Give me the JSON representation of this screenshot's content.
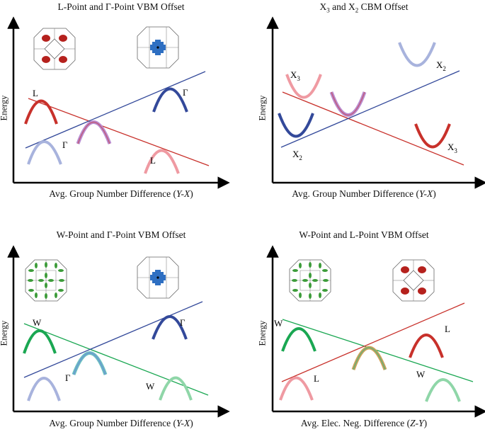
{
  "colors": {
    "red": "#c8312b",
    "lightred": "#ef9aa2",
    "blue": "#33499a",
    "lightblue": "#a8b3dd",
    "purple": "#b98bd0",
    "green": "#1aa752",
    "lightgreen": "#8fd6a8",
    "bz_red": "#b5211d",
    "bz_blue": "#2e6fc2",
    "bz_green": "#3d9c3a"
  },
  "panels": [
    {
      "title_parts": [
        "L-Point and ",
        "Γ",
        "-Point VBM Offset"
      ],
      "xlabel": "Avg. Group Number Difference (",
      "xlabel_var": "Y-X",
      "xlabel_end": ")",
      "ylabel": "Energy",
      "labels": {
        "a": "L",
        "b": "Γ",
        "c": "Γ",
        "d": "L"
      },
      "bz_icons": [
        "L-point pockets",
        "Γ-point pocket"
      ]
    },
    {
      "title_parts": [
        "X",
        "3",
        " and X",
        "2",
        " CBM Offset"
      ],
      "xlabel": "Avg. Group Number Difference (",
      "xlabel_var": "Y-X",
      "xlabel_end": ")",
      "ylabel": "Energy",
      "labels": {
        "a": "X",
        "a_sub": "3",
        "b": "X",
        "b_sub": "2",
        "c": "X",
        "c_sub": "2",
        "d": "X",
        "d_sub": "3"
      }
    },
    {
      "title_parts": [
        "W-Point and ",
        "Γ",
        "-Point VBM Offset"
      ],
      "xlabel": "Avg. Group Number Difference (",
      "xlabel_var": "Y-X",
      "xlabel_end": ")",
      "ylabel": "Energy",
      "labels": {
        "a": "W",
        "b": "Γ",
        "c": "Γ",
        "d": "W"
      },
      "bz_icons": [
        "W-point pockets",
        "Γ-point pocket"
      ]
    },
    {
      "title_parts": [
        "W-Point and L-Point VBM Offset"
      ],
      "xlabel": "Avg. Elec. Neg. Difference (",
      "xlabel_var": "Z-Y",
      "xlabel_end": ")",
      "ylabel": "Energy",
      "labels": {
        "a": "W",
        "b": "L",
        "c": "L",
        "d": "W"
      },
      "bz_icons": [
        "W-point pockets",
        "L-point pockets"
      ]
    }
  ]
}
